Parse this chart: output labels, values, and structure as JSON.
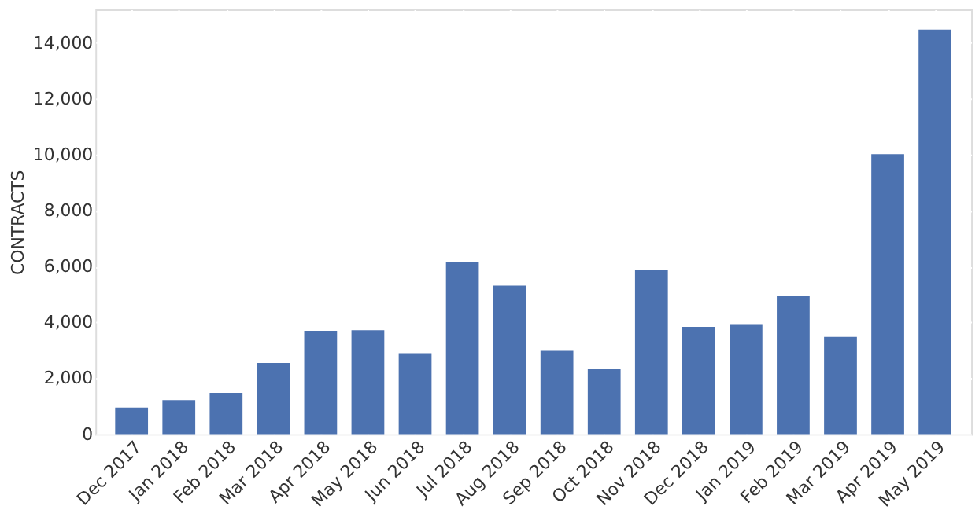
{
  "chart_data": {
    "type": "bar",
    "ylabel": "CONTRACTS",
    "categories": [
      "Dec 2017",
      "Jan 2018",
      "Feb 2018",
      "Mar 2018",
      "Apr 2018",
      "May 2018",
      "Jun 2018",
      "Jul 2018",
      "Aug 2018",
      "Sep 2018",
      "Oct 2018",
      "Nov 2018",
      "Dec 2018",
      "Jan 2019",
      "Feb 2019",
      "Mar 2019",
      "Apr 2019",
      "May 2019"
    ],
    "values": [
      950,
      1220,
      1480,
      2550,
      3700,
      3720,
      2900,
      6150,
      5320,
      2980,
      2320,
      5880,
      3840,
      3940,
      4940,
      3480,
      10020,
      14480
    ],
    "color": "#4c72b0",
    "ylim": [
      0,
      15200
    ],
    "yticks": [
      0,
      {
        "value": 2000,
        "label": "2,000"
      },
      {
        "value": 4000,
        "label": "4,000"
      },
      {
        "value": 6000,
        "label": "6,000"
      },
      {
        "value": 8000,
        "label": "8,000"
      },
      {
        "value": 10000,
        "label": "10,000"
      },
      {
        "value": 12000,
        "label": "12,000"
      },
      {
        "value": 14000,
        "label": "14,000"
      }
    ],
    "grid": true
  }
}
